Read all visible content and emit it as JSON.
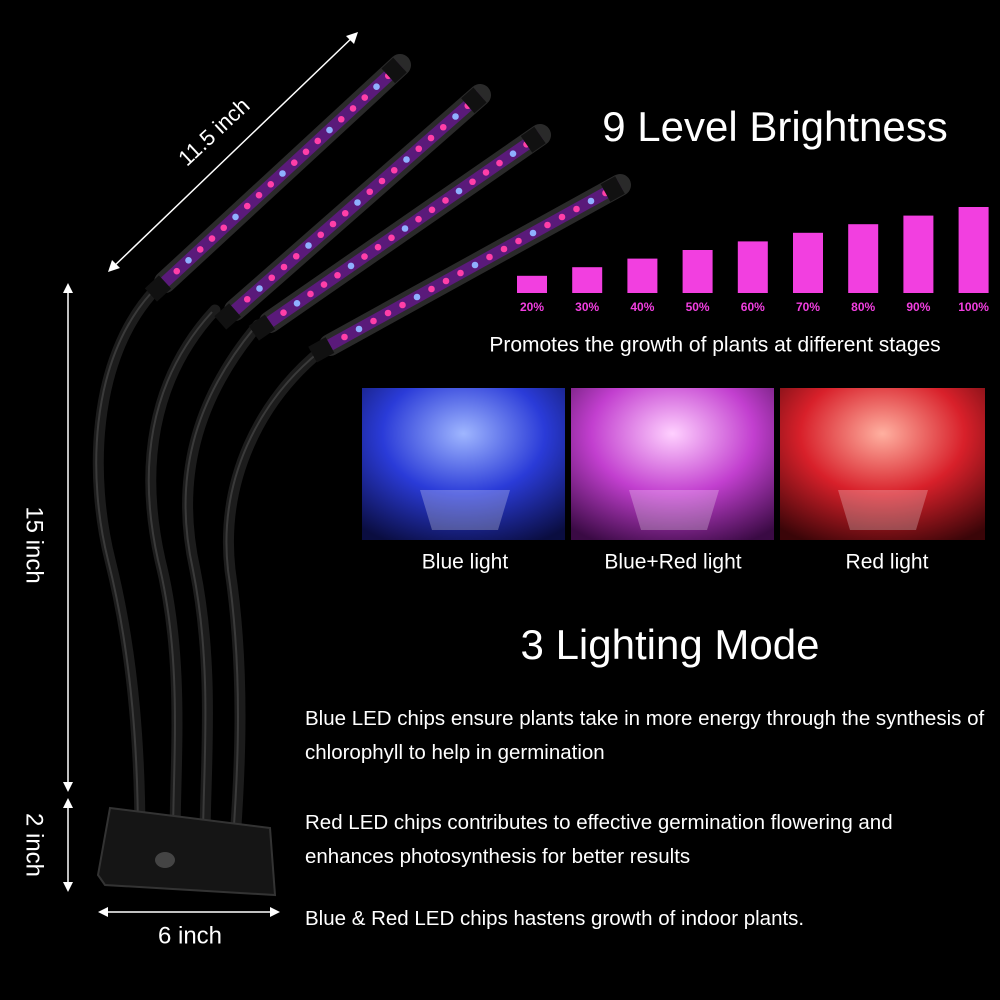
{
  "dimensions": {
    "tube_length": "11.5 inch",
    "neck_height": "15 inch",
    "clip_height": "2 inch",
    "clip_width": "6 inch"
  },
  "brightness": {
    "title": "9 Level Brightness",
    "levels": [
      {
        "value": 20,
        "label": "20%"
      },
      {
        "value": 30,
        "label": "30%"
      },
      {
        "value": 40,
        "label": "40%"
      },
      {
        "value": 50,
        "label": "50%"
      },
      {
        "value": 60,
        "label": "60%"
      },
      {
        "value": 70,
        "label": "70%"
      },
      {
        "value": 80,
        "label": "80%"
      },
      {
        "value": 90,
        "label": "90%"
      },
      {
        "value": 100,
        "label": "100%"
      }
    ],
    "caption": "Promotes the growth of plants at different stages"
  },
  "modes": {
    "photos": [
      "Blue light",
      "Blue+Red light",
      "Red light"
    ],
    "title": "3 Lighting Mode",
    "descriptions": [
      "Blue LED chips ensure plants take in more energy through the synthesis of chlorophyll to help in germination",
      "Red LED chips contributes to effective germination flowering and enhances photosynthesis for better results",
      "Blue & Red LED chips hastens growth of indoor plants."
    ]
  }
}
